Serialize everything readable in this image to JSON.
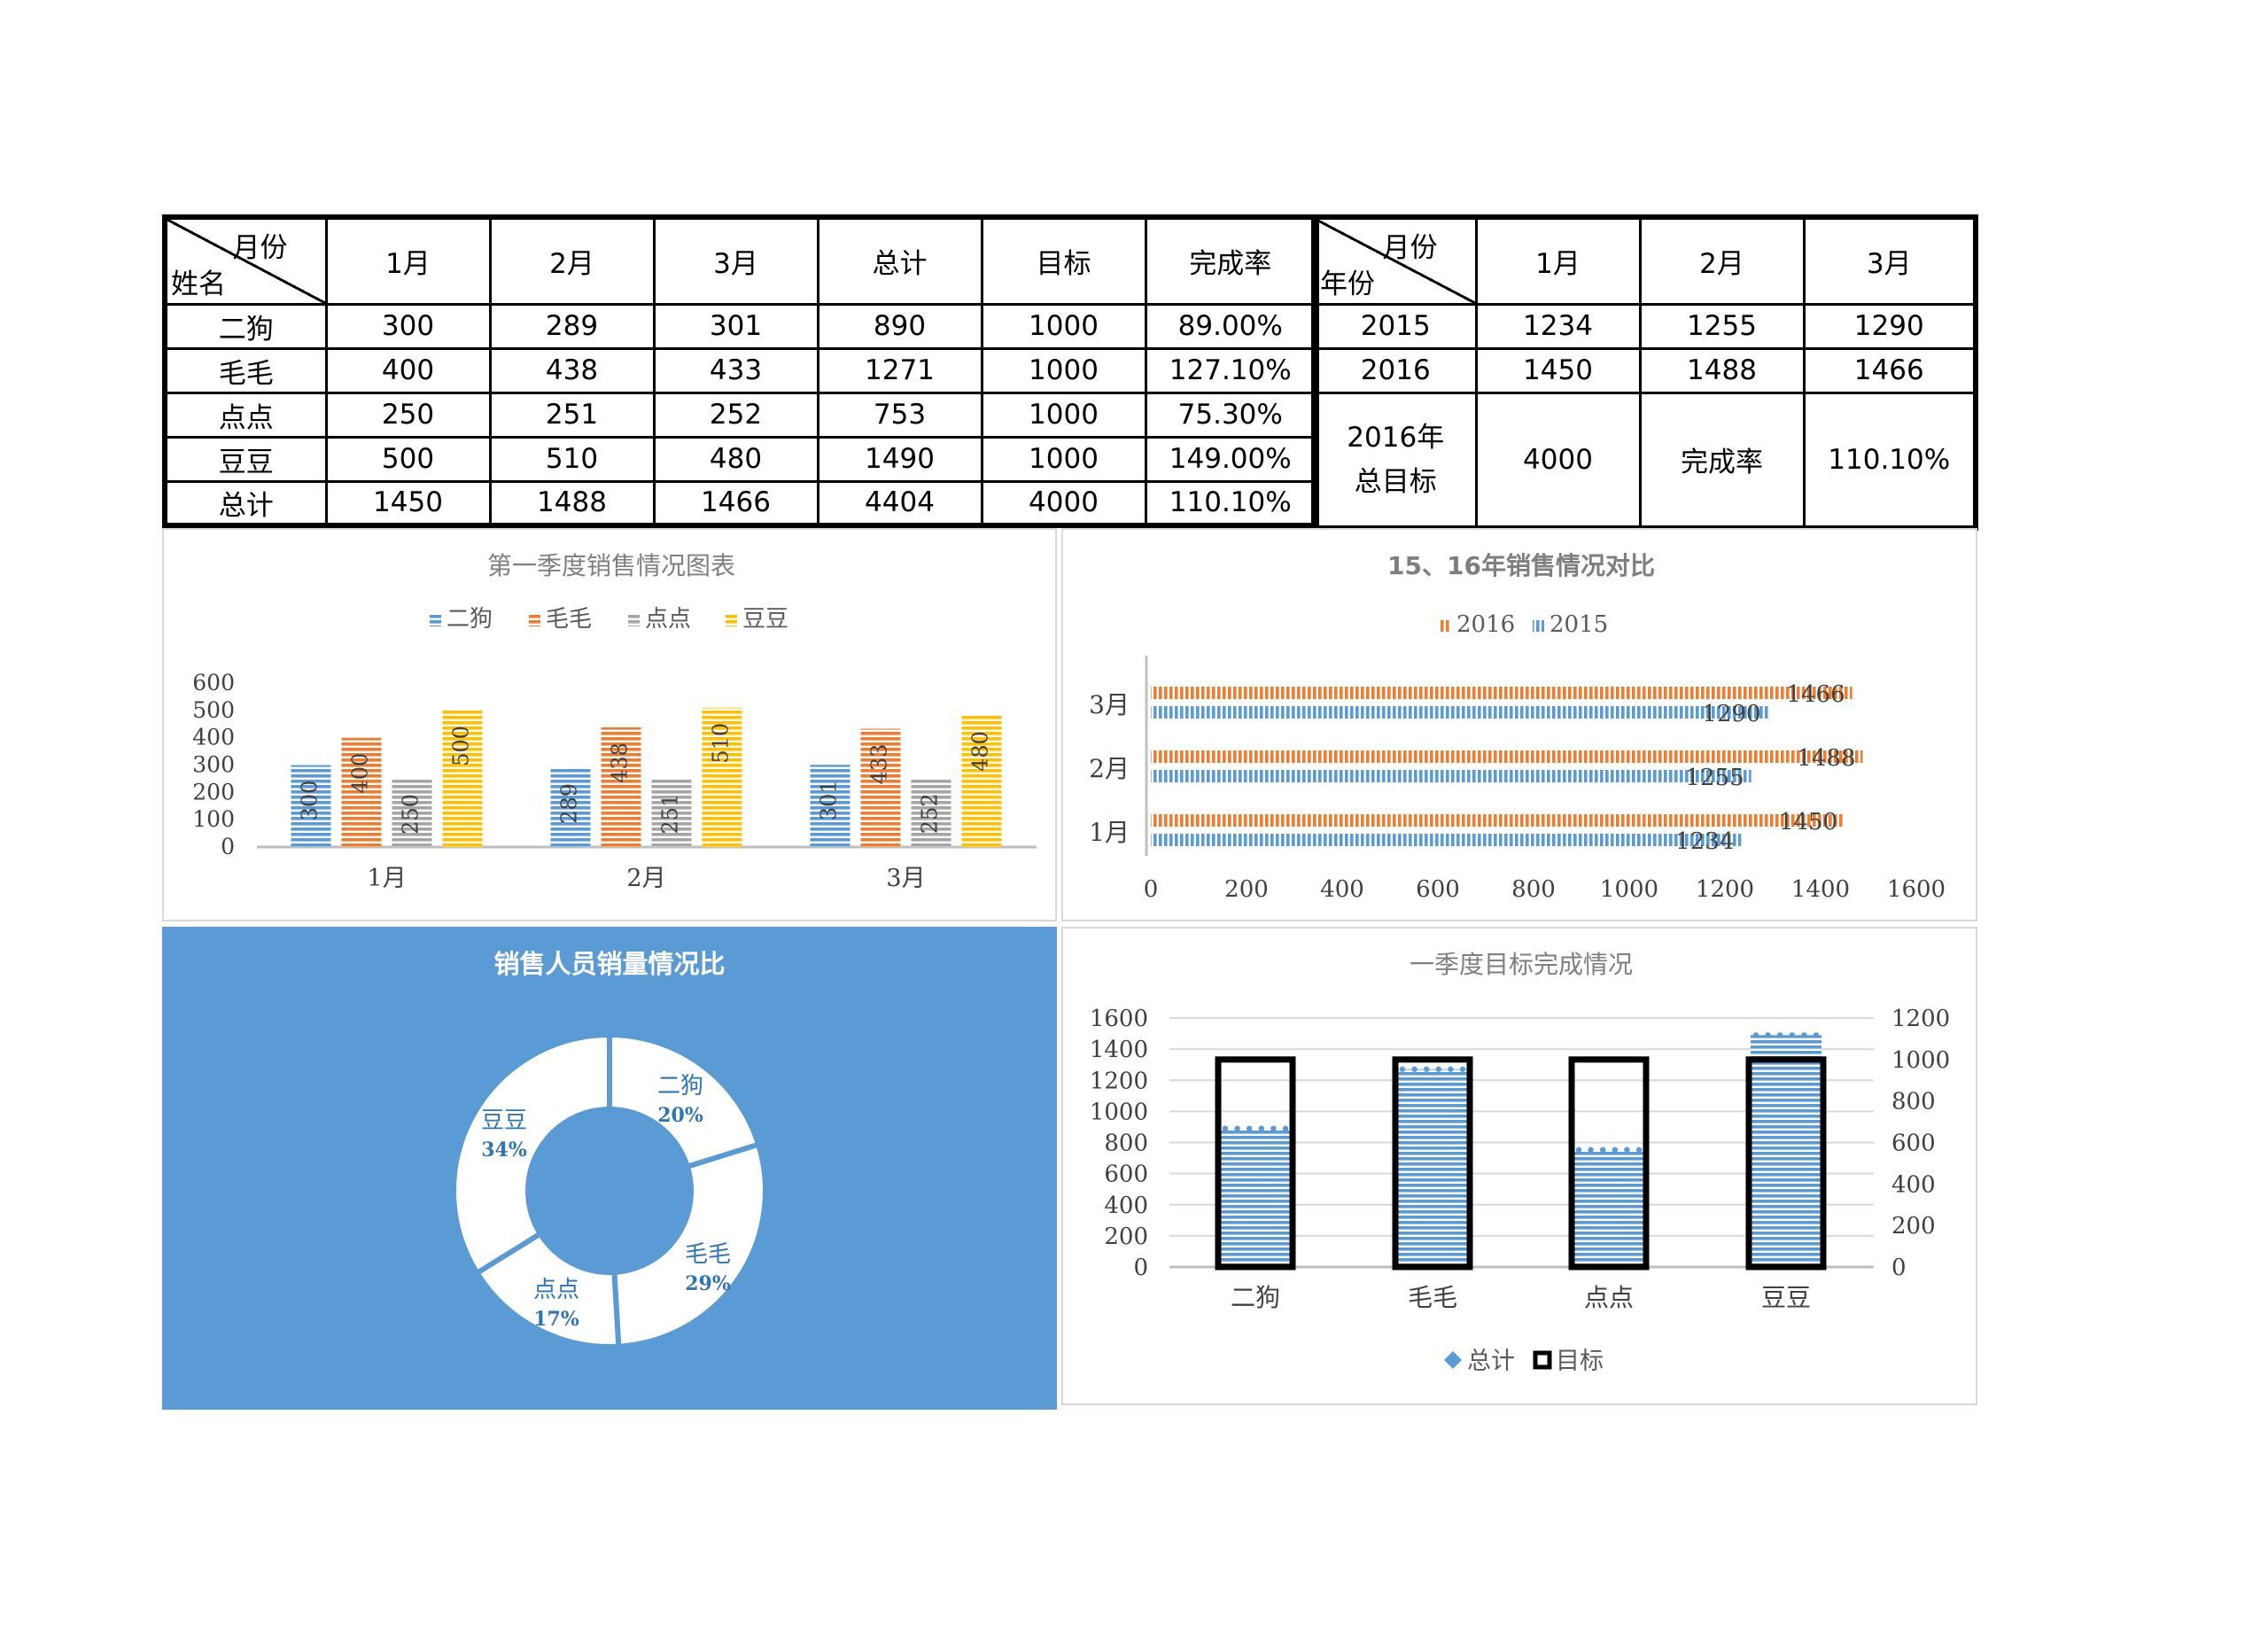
{
  "table_sales": {
    "header_diag_top": "月份",
    "header_diag_bottom": "姓名",
    "columns": [
      "1月",
      "2月",
      "3月",
      "总计",
      "目标",
      "完成率"
    ],
    "rows": [
      {
        "name": "二狗",
        "cells": [
          "300",
          "289",
          "301",
          "890",
          "1000",
          "89.00%"
        ]
      },
      {
        "name": "毛毛",
        "cells": [
          "400",
          "438",
          "433",
          "1271",
          "1000",
          "127.10%"
        ]
      },
      {
        "name": "点点",
        "cells": [
          "250",
          "251",
          "252",
          "753",
          "1000",
          "75.30%"
        ]
      },
      {
        "name": "豆豆",
        "cells": [
          "500",
          "510",
          "480",
          "1490",
          "1000",
          "149.00%"
        ]
      },
      {
        "name": "总计",
        "cells": [
          "1450",
          "1488",
          "1466",
          "4404",
          "4000",
          "110.10%"
        ]
      }
    ]
  },
  "table_years": {
    "header_diag_top": "月份",
    "header_diag_bottom": "年份",
    "columns": [
      "1月",
      "2月",
      "3月"
    ],
    "rows": [
      {
        "year": "2015",
        "cells": [
          "1234",
          "1255",
          "1290"
        ]
      },
      {
        "year": "2016",
        "cells": [
          "1450",
          "1488",
          "1466"
        ]
      }
    ],
    "goal_label_line1": "2016年",
    "goal_label_line2": "总目标",
    "goal_value": "4000",
    "rate_label": "完成率",
    "rate_value": "110.10%"
  },
  "chart_data": [
    {
      "id": "q1_sales",
      "type": "bar",
      "title": "第一季度销售情况图表",
      "categories": [
        "1月",
        "2月",
        "3月"
      ],
      "series": [
        {
          "name": "二狗",
          "values": [
            300,
            289,
            301
          ],
          "color": "#5b9bd5"
        },
        {
          "name": "毛毛",
          "values": [
            400,
            438,
            433
          ],
          "color": "#ed7d31"
        },
        {
          "name": "点点",
          "values": [
            250,
            251,
            252
          ],
          "color": "#a5a5a5"
        },
        {
          "name": "豆豆",
          "values": [
            500,
            510,
            480
          ],
          "color": "#ffc000"
        }
      ],
      "ylim": [
        0,
        600
      ],
      "yticks": [
        0,
        100,
        200,
        300,
        400,
        500,
        600
      ],
      "legend": "top",
      "grid": false,
      "data_labels": true
    },
    {
      "id": "year_compare",
      "type": "bar",
      "orientation": "horizontal",
      "title": "15、16年销售情况对比",
      "categories": [
        "1月",
        "2月",
        "3月"
      ],
      "series": [
        {
          "name": "2016",
          "values": [
            1450,
            1488,
            1466
          ],
          "color": "#ed7d31"
        },
        {
          "name": "2015",
          "values": [
            1234,
            1255,
            1290
          ],
          "color": "#5b9bd5"
        }
      ],
      "xlim": [
        0,
        1600
      ],
      "xticks": [
        0,
        200,
        400,
        600,
        800,
        1000,
        1200,
        1400,
        1600
      ],
      "legend": "top",
      "grid": false,
      "data_labels": true
    },
    {
      "id": "staff_share",
      "type": "pie",
      "variant": "donut",
      "title": "销售人员销量情况比",
      "background": "#5b9bd5",
      "slices": [
        {
          "label": "二狗",
          "value": 890,
          "pct": "20%"
        },
        {
          "label": "毛毛",
          "value": 1271,
          "pct": "29%"
        },
        {
          "label": "点点",
          "value": 753,
          "pct": "17%"
        },
        {
          "label": "豆豆",
          "value": 1490,
          "pct": "34%"
        }
      ]
    },
    {
      "id": "target_completion",
      "type": "bar",
      "title": "一季度目标完成情况",
      "categories": [
        "二狗",
        "毛毛",
        "点点",
        "豆豆"
      ],
      "series": [
        {
          "name": "总计",
          "axis": "left",
          "values": [
            890,
            1271,
            753,
            1490
          ],
          "color": "#5b9bd5"
        },
        {
          "name": "目标",
          "axis": "right",
          "values": [
            1000,
            1000,
            1000,
            1000
          ],
          "color": "#000000"
        }
      ],
      "ylim_left": [
        0,
        1600
      ],
      "yticks_left": [
        0,
        200,
        400,
        600,
        800,
        1000,
        1200,
        1400,
        1600
      ],
      "ylim_right": [
        0,
        1200
      ],
      "yticks_right": [
        0,
        200,
        400,
        600,
        800,
        1000,
        1200
      ],
      "legend": "bottom",
      "grid": true
    }
  ]
}
